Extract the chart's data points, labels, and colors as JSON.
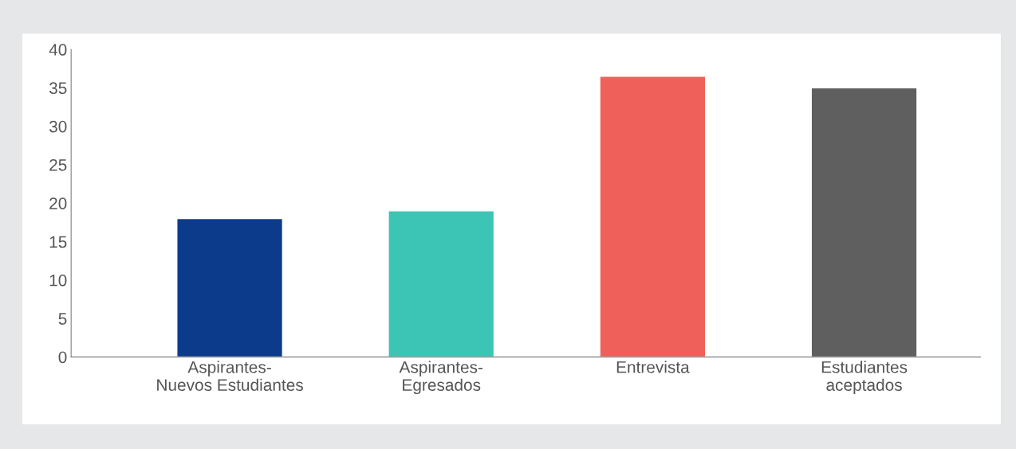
{
  "chart_data": {
    "type": "bar",
    "categories": [
      "Aspirantes-\nNuevos Estudiantes",
      "Aspirantes-\nEgresados",
      "Entrevista",
      "Estudiantes\naceptados"
    ],
    "values": [
      18,
      19,
      36.5,
      35
    ],
    "colors": [
      "#0d3b8c",
      "#3cc4b4",
      "#f0605a",
      "#5f5f5f"
    ],
    "ylim": [
      0,
      40
    ],
    "yticks": [
      0,
      5,
      10,
      15,
      20,
      25,
      30,
      35,
      40
    ],
    "grid": false
  }
}
